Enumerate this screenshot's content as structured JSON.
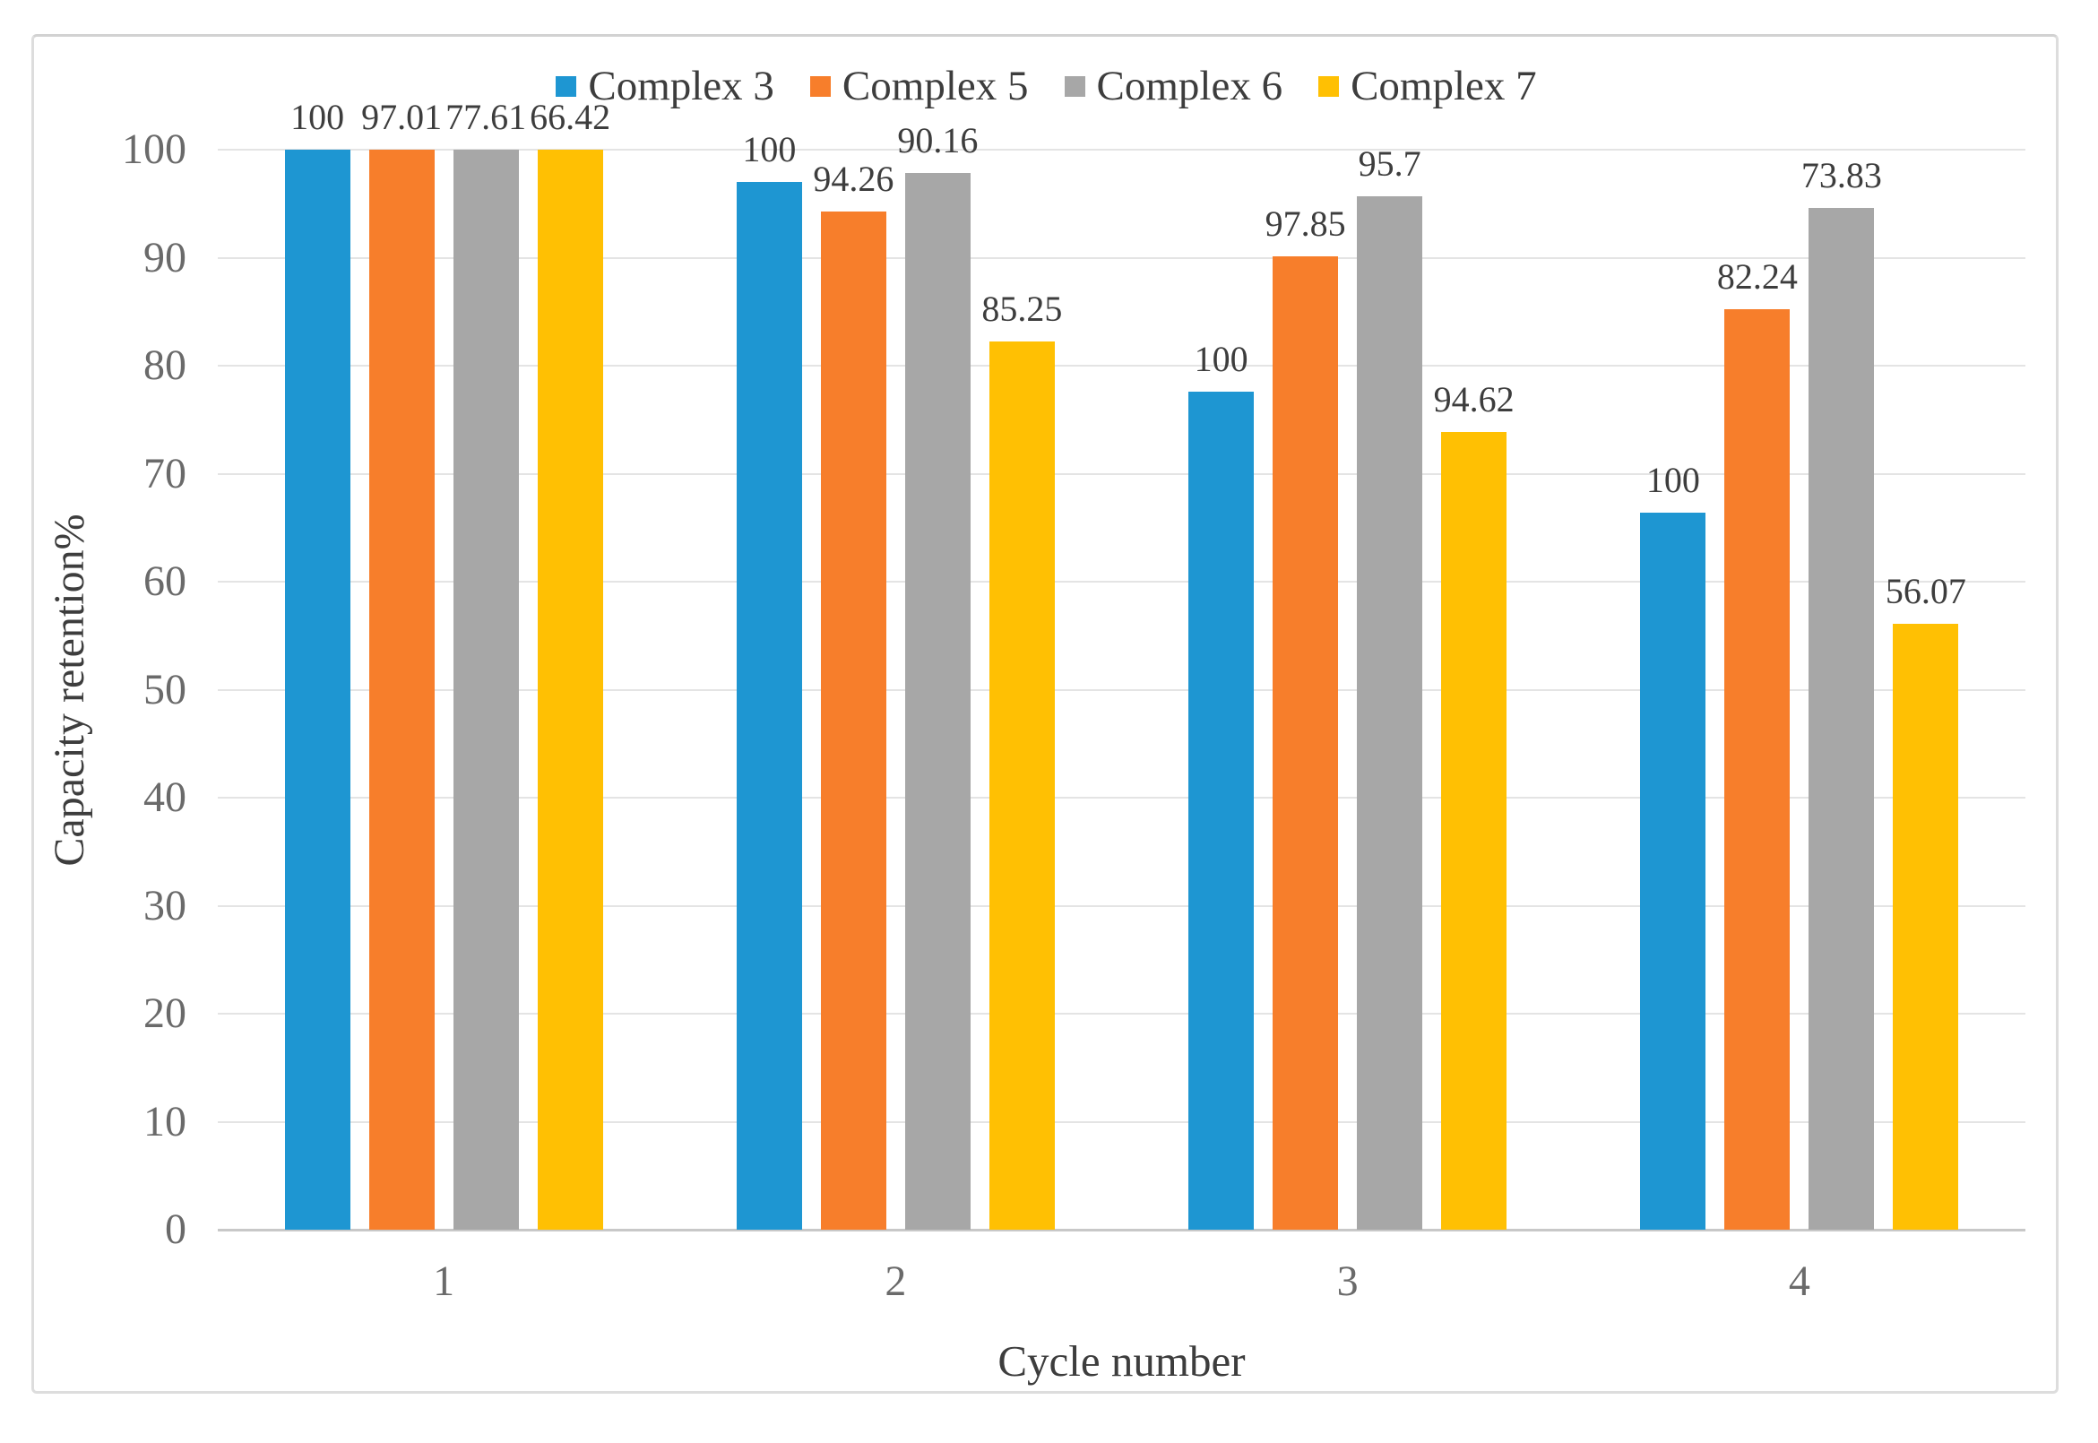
{
  "chart_data": {
    "type": "bar",
    "title": "",
    "categories": [
      "1",
      "2",
      "3",
      "4"
    ],
    "series": [
      {
        "name": "Complex 3",
        "color": "#1e96d2",
        "values": [
          100,
          97.01,
          77.61,
          66.42
        ]
      },
      {
        "name": "Complex 5",
        "color": "#f77e2b",
        "values": [
          100,
          94.26,
          90.16,
          85.25
        ]
      },
      {
        "name": "Complex 6",
        "color": "#a7a7a7",
        "values": [
          100,
          97.85,
          95.7,
          94.62
        ]
      },
      {
        "name": "Complex 7",
        "color": "#ffc003",
        "values": [
          100,
          82.24,
          73.83,
          56.07
        ]
      }
    ],
    "data_labels": [
      [
        "100",
        "97.01",
        "77.61",
        "66.42"
      ],
      [
        "100",
        "94.26",
        "90.16",
        "85.25"
      ],
      [
        "100",
        "97.85",
        "95.7",
        "94.62"
      ],
      [
        "100",
        "82.24",
        "73.83",
        "56.07"
      ]
    ],
    "xlabel": "Cycle number",
    "ylabel": "Capacity retention%",
    "ylim": [
      0,
      100
    ],
    "ytick_step": 10,
    "y_ticks": [
      "0",
      "10",
      "20",
      "30",
      "40",
      "50",
      "60",
      "70",
      "80",
      "90",
      "100"
    ],
    "legend_position": "top",
    "grid": "horizontal",
    "bar_value_labels_visible": true
  },
  "colors": {
    "grid_line": "#e4e4e4",
    "axis_line": "#c8c8c8",
    "tick_label": "#6a6a6a",
    "data_label": "#3d3d3d",
    "legend_text": "#3d3d3d",
    "axis_title": "#3d3d3d",
    "figure_border": "#dddddd",
    "background": "#ffffff"
  }
}
